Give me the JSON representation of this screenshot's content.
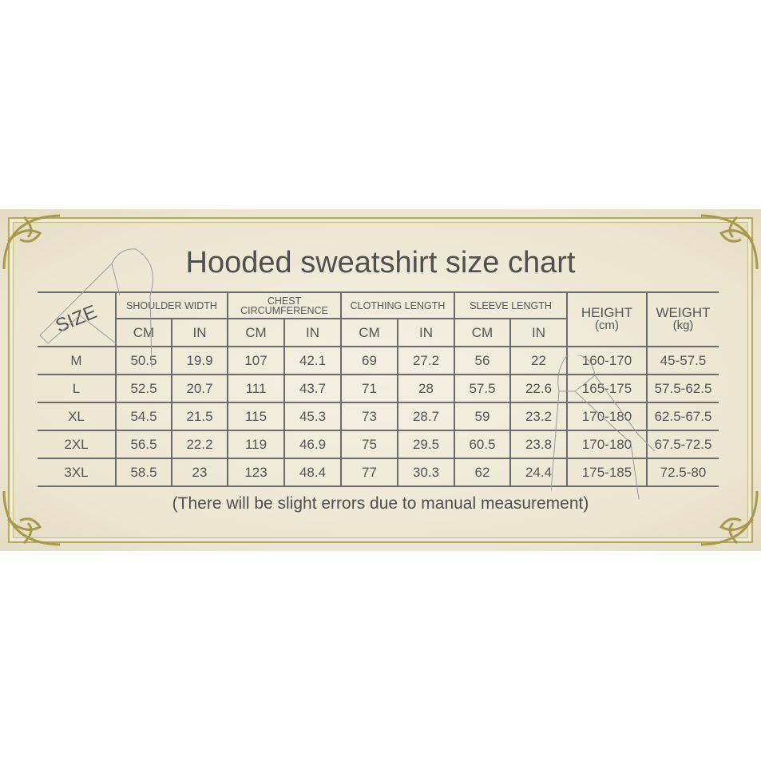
{
  "title": "Hooded sweatshirt size chart",
  "note": "(There will be slight errors due to manual measurement)",
  "colors": {
    "frame": "#b7a860",
    "text": "#555555",
    "background": "#ede6d2"
  },
  "table": {
    "size_header": "SIZE",
    "groups": [
      "SHOULDER WIDTH",
      "CHEST CIRCUMFERENCE",
      "CLOTHING LENGTH",
      "SLEEVE LENGTH"
    ],
    "height_header": {
      "label": "HEIGHT",
      "unit": "(cm)"
    },
    "weight_header": {
      "label": "WEIGHT",
      "unit": "(kg)"
    },
    "units": [
      "CM",
      "IN",
      "CM",
      "IN",
      "CM",
      "IN",
      "CM",
      "IN"
    ],
    "rows": [
      [
        "M",
        "50.5",
        "19.9",
        "107",
        "42.1",
        "69",
        "27.2",
        "56",
        "22",
        "160-170",
        "45-57.5"
      ],
      [
        "L",
        "52.5",
        "20.7",
        "111",
        "43.7",
        "71",
        "28",
        "57.5",
        "22.6",
        "165-175",
        "57.5-62.5"
      ],
      [
        "XL",
        "54.5",
        "21.5",
        "115",
        "45.3",
        "73",
        "28.7",
        "59",
        "23.2",
        "170-180",
        "62.5-67.5"
      ],
      [
        "2XL",
        "56.5",
        "22.2",
        "119",
        "46.9",
        "75",
        "29.5",
        "60.5",
        "23.8",
        "170-180",
        "67.5-72.5"
      ],
      [
        "3XL",
        "58.5",
        "23",
        "123",
        "48.4",
        "77",
        "30.3",
        "62",
        "24.4",
        "175-185",
        "72.5-80"
      ]
    ]
  }
}
